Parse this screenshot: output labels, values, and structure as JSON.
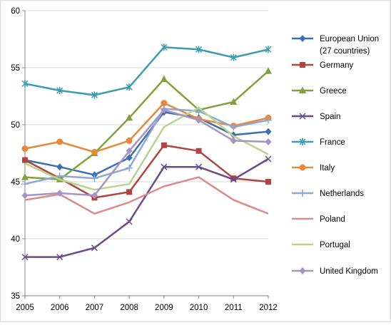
{
  "chart_data": {
    "type": "line",
    "categories": [
      "2005",
      "2006",
      "2007",
      "2008",
      "2009",
      "2010",
      "2011",
      "2012"
    ],
    "ylim": [
      35,
      60
    ],
    "yticks": [
      35,
      40,
      45,
      50,
      55,
      60
    ],
    "grid": "horizontal",
    "legend_position": "right",
    "series": [
      {
        "name": "European Union (27 countries)",
        "legend_lines": [
          "European Union",
          "(27 countries)"
        ],
        "color": "#3c6eb4",
        "marker": "diamond",
        "values": [
          46.9,
          46.3,
          45.6,
          47.1,
          51.1,
          50.6,
          49.1,
          49.4
        ]
      },
      {
        "name": "Germany",
        "legend_lines": [
          "Germany"
        ],
        "color": "#b2443f",
        "marker": "square",
        "values": [
          46.9,
          45.3,
          43.6,
          44.1,
          48.2,
          47.7,
          45.3,
          45.0
        ]
      },
      {
        "name": "Greece",
        "legend_lines": [
          "Greece"
        ],
        "color": "#7fa23a",
        "marker": "triangle",
        "values": [
          45.4,
          45.2,
          47.5,
          50.6,
          54.0,
          51.3,
          52.0,
          54.7
        ]
      },
      {
        "name": "Spain",
        "legend_lines": [
          "Spain"
        ],
        "color": "#6a4c8a",
        "marker": "x",
        "values": [
          38.4,
          38.4,
          39.2,
          41.5,
          46.3,
          46.3,
          45.2,
          47.0
        ]
      },
      {
        "name": "France",
        "legend_lines": [
          "France"
        ],
        "color": "#3a9cb4",
        "marker": "star",
        "values": [
          53.6,
          53.0,
          52.6,
          53.3,
          56.8,
          56.6,
          55.9,
          56.6
        ]
      },
      {
        "name": "Italy",
        "legend_lines": [
          "Italy"
        ],
        "color": "#e6893a",
        "marker": "circle",
        "values": [
          47.9,
          48.5,
          47.6,
          48.6,
          51.9,
          50.5,
          49.9,
          50.6
        ]
      },
      {
        "name": "Netherlands",
        "legend_lines": [
          "Netherlands"
        ],
        "color": "#8aa8d6",
        "marker": "plus",
        "values": [
          44.8,
          45.5,
          45.3,
          46.2,
          51.4,
          51.2,
          49.8,
          50.4
        ]
      },
      {
        "name": "Poland",
        "legend_lines": [
          "Poland"
        ],
        "color": "#d98c89",
        "marker": "none",
        "values": [
          43.4,
          43.9,
          42.2,
          43.2,
          44.6,
          45.4,
          43.4,
          42.2
        ]
      },
      {
        "name": "Portugal",
        "legend_lines": [
          "Portugal"
        ],
        "color": "#b9d38e",
        "marker": "none",
        "values": [
          46.6,
          45.2,
          44.3,
          44.8,
          49.8,
          51.5,
          49.0,
          47.4
        ]
      },
      {
        "name": "United Kingdom",
        "legend_lines": [
          "United Kingdom"
        ],
        "color": "#a593c2",
        "marker": "diamond",
        "values": [
          43.8,
          44.0,
          43.8,
          47.7,
          51.3,
          50.4,
          48.6,
          48.5
        ]
      }
    ]
  }
}
